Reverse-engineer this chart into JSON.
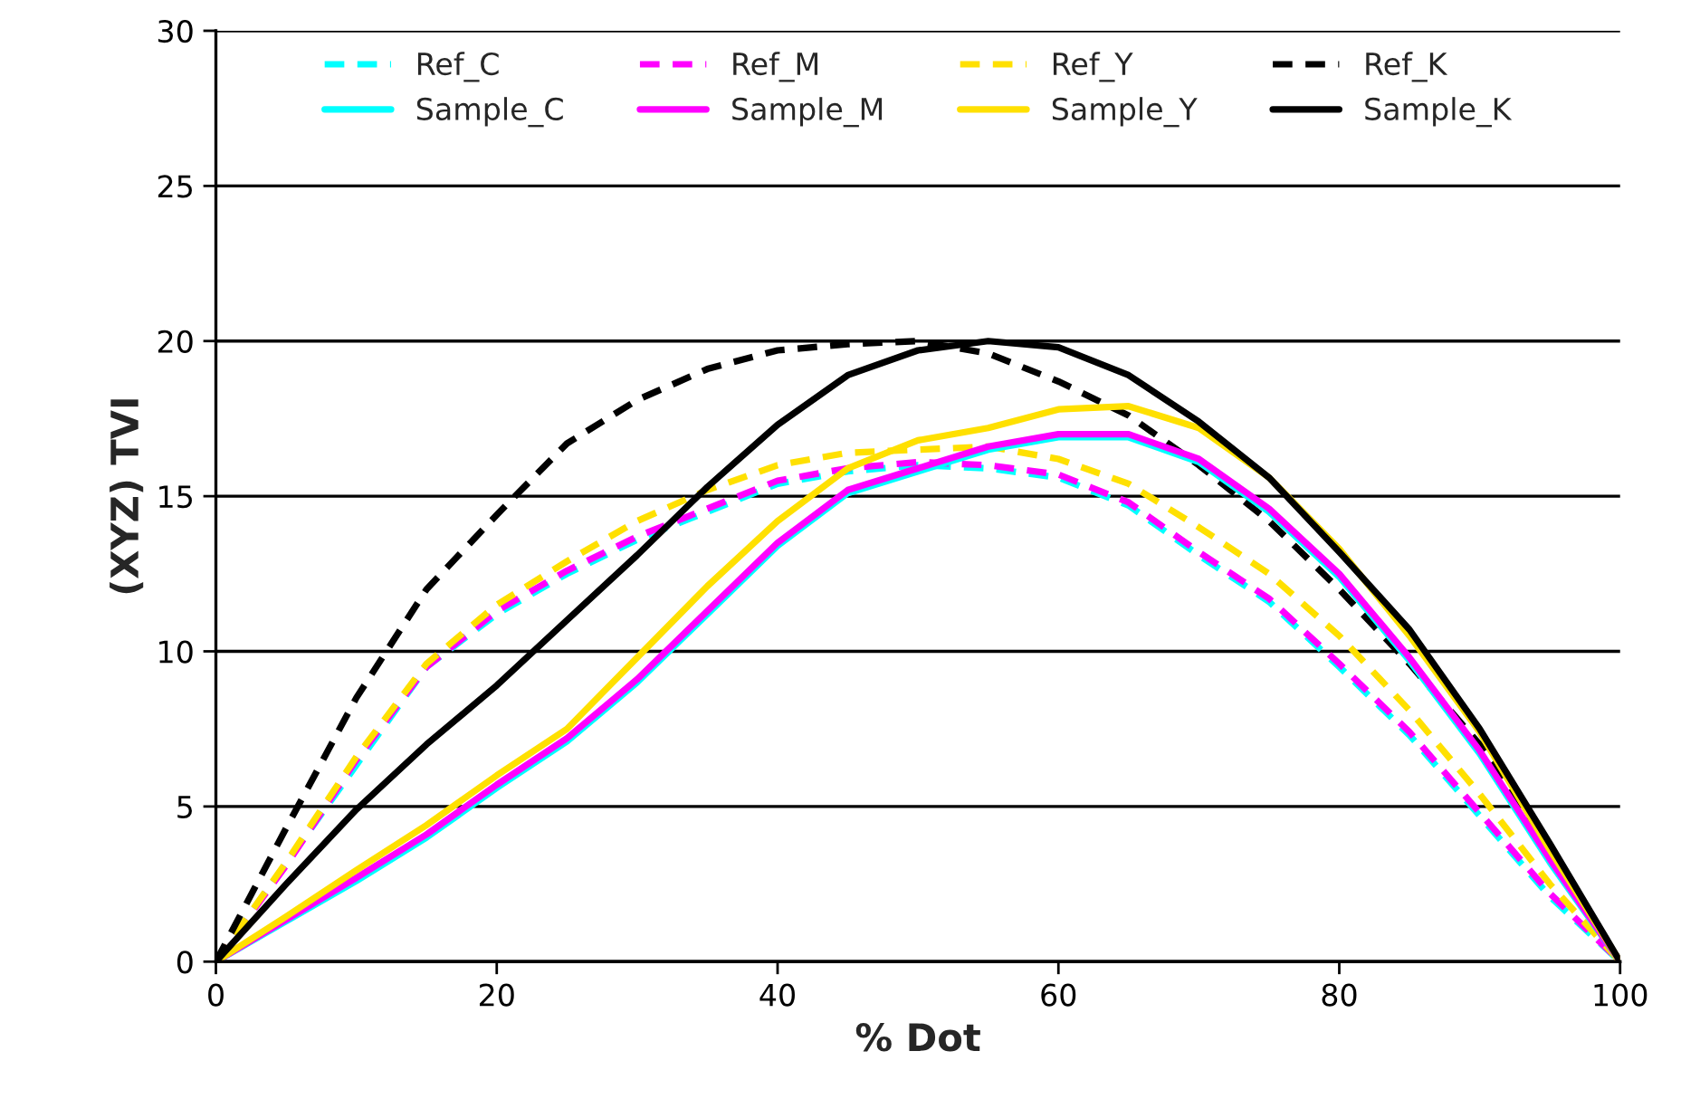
{
  "chart_data": {
    "type": "line",
    "xlabel": "% Dot",
    "ylabel": "(XYZ) TVI",
    "x": [
      0,
      5,
      10,
      15,
      20,
      25,
      30,
      35,
      40,
      45,
      50,
      55,
      60,
      65,
      70,
      75,
      80,
      85,
      90,
      95,
      100
    ],
    "series": [
      {
        "name": "Ref_C",
        "color": "#00ffff",
        "line_style": "dashed",
        "values": [
          0,
          null,
          null,
          9.5,
          11.2,
          12.5,
          13.6,
          14.5,
          15.4,
          15.8,
          16.0,
          15.9,
          15.6,
          14.7,
          13.1,
          11.6,
          9.5,
          7.3,
          4.7,
          2.1,
          0
        ]
      },
      {
        "name": "Ref_M",
        "color": "#ff00ff",
        "line_style": "dashed",
        "values": [
          0,
          3.1,
          6.5,
          9.5,
          11.3,
          12.6,
          13.7,
          14.6,
          15.5,
          15.9,
          16.1,
          16.0,
          15.7,
          14.8,
          13.2,
          11.7,
          9.6,
          7.4,
          4.8,
          2.2,
          0
        ]
      },
      {
        "name": "Ref_Y",
        "color": "#ffe000",
        "line_style": "dashed",
        "values": [
          0,
          3.2,
          6.6,
          9.6,
          11.5,
          12.9,
          14.2,
          15.2,
          16.0,
          16.4,
          16.5,
          16.6,
          16.2,
          15.4,
          14.0,
          12.5,
          10.5,
          8.1,
          5.4,
          2.5,
          0
        ]
      },
      {
        "name": "Ref_K",
        "color": "#000000",
        "line_style": "dashed",
        "values": [
          0,
          4.3,
          8.5,
          12.0,
          14.4,
          16.7,
          18.1,
          19.1,
          19.7,
          19.9,
          20.0,
          19.6,
          18.7,
          17.6,
          16.0,
          14.2,
          12.0,
          9.6,
          7.0,
          3.6,
          0
        ]
      },
      {
        "name": "Sample_C",
        "color": "#00ffff",
        "line_style": "solid",
        "values": [
          0,
          1.3,
          2.6,
          4.0,
          5.6,
          7.1,
          9.0,
          11.2,
          13.4,
          15.1,
          15.8,
          16.5,
          16.9,
          16.9,
          16.1,
          14.5,
          12.4,
          9.7,
          6.7,
          3.2,
          0
        ]
      },
      {
        "name": "Sample_M",
        "color": "#ff00ff",
        "line_style": "solid",
        "values": [
          0,
          1.35,
          2.7,
          4.1,
          5.7,
          7.2,
          9.1,
          11.3,
          13.5,
          15.2,
          15.9,
          16.6,
          17.0,
          17.0,
          16.2,
          14.6,
          12.5,
          9.8,
          6.8,
          3.3,
          0
        ]
      },
      {
        "name": "Sample_Y",
        "color": "#ffe000",
        "line_style": "solid",
        "values": [
          0,
          1.45,
          2.95,
          4.4,
          6.0,
          7.5,
          9.8,
          12.1,
          14.2,
          15.9,
          16.8,
          17.2,
          17.8,
          17.9,
          17.2,
          15.6,
          13.3,
          10.5,
          7.4,
          3.6,
          0
        ]
      },
      {
        "name": "Sample_K",
        "color": "#000000",
        "line_style": "solid",
        "values": [
          0,
          2.5,
          4.9,
          7.0,
          8.9,
          11.0,
          13.1,
          15.3,
          17.3,
          18.9,
          19.7,
          20.0,
          19.8,
          18.9,
          17.4,
          15.6,
          13.2,
          10.7,
          7.5,
          3.8,
          0
        ]
      }
    ],
    "xlim": [
      0,
      100
    ],
    "xticks": [
      0,
      20,
      40,
      60,
      80,
      100
    ],
    "ylim": [
      0,
      30
    ],
    "yticks": [
      0,
      5,
      10,
      15,
      20,
      25,
      30
    ],
    "grid": "y",
    "legend": "top"
  }
}
